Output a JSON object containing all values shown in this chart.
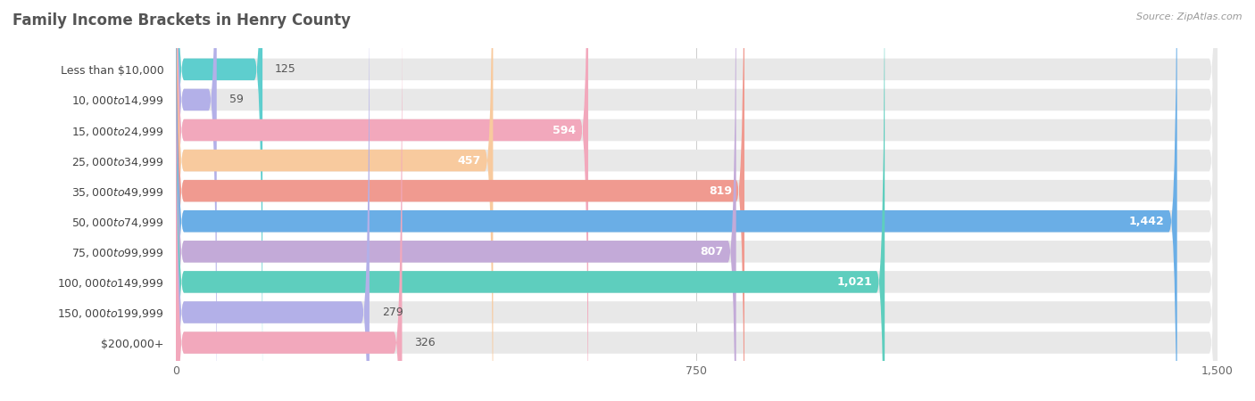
{
  "title": "Family Income Brackets in Henry County",
  "source": "Source: ZipAtlas.com",
  "categories": [
    "Less than $10,000",
    "$10,000 to $14,999",
    "$15,000 to $24,999",
    "$25,000 to $34,999",
    "$35,000 to $49,999",
    "$50,000 to $74,999",
    "$75,000 to $99,999",
    "$100,000 to $149,999",
    "$150,000 to $199,999",
    "$200,000+"
  ],
  "values": [
    125,
    59,
    594,
    457,
    819,
    1442,
    807,
    1021,
    279,
    326
  ],
  "colors": [
    "#5ecece",
    "#b3b0e8",
    "#f2a8bc",
    "#f8ca9e",
    "#f09a90",
    "#6aaee6",
    "#c3aad8",
    "#5ecebe",
    "#b3b0e8",
    "#f2a8bc"
  ],
  "xlim": [
    0,
    1500
  ],
  "xticks": [
    0,
    750,
    1500
  ],
  "bar_bg_color": "#e8e8e8",
  "title_fontsize": 12,
  "label_fontsize": 9,
  "value_fontsize": 9,
  "tick_fontsize": 9,
  "value_threshold": 400
}
